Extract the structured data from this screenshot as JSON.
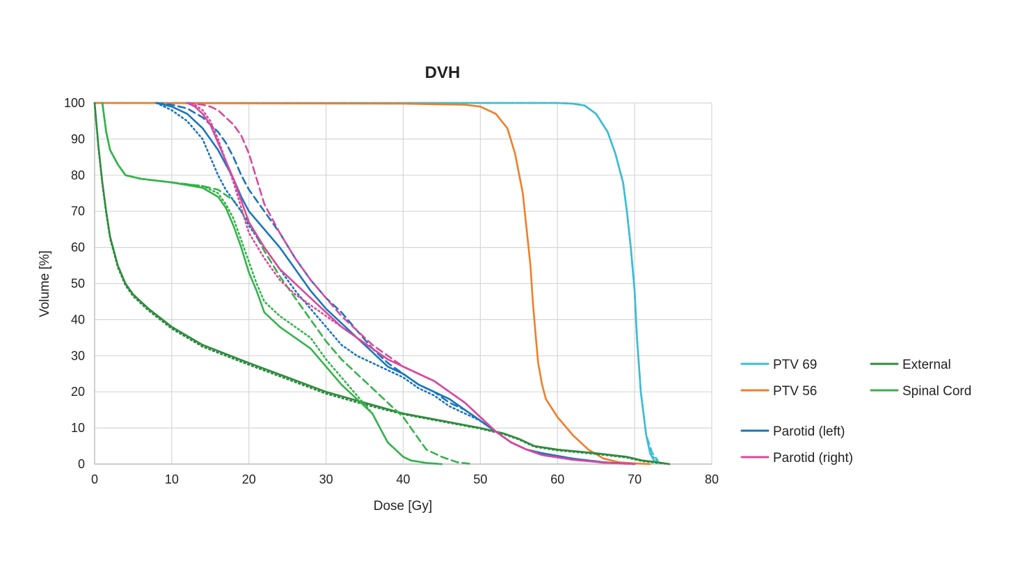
{
  "chart_data": {
    "type": "line",
    "title": "DVH",
    "xlabel": "Dose [Gy]",
    "ylabel": "Volume [%]",
    "xlim": [
      0,
      80
    ],
    "ylim": [
      0,
      100
    ],
    "xticks": [
      0,
      10,
      20,
      30,
      40,
      50,
      60,
      70,
      80
    ],
    "yticks": [
      0,
      10,
      20,
      30,
      40,
      50,
      60,
      70,
      80,
      90,
      100
    ],
    "grid": true,
    "legend_position": "right",
    "legend": [
      {
        "name": "PTV 69",
        "color": "#3dbcd4"
      },
      {
        "name": "External",
        "color": "#2e8b3e"
      },
      {
        "name": "PTV 56",
        "color": "#f07d28"
      },
      {
        "name": "Spinal Cord",
        "color": "#33b34a"
      },
      {
        "name": "Parotid (left)",
        "color": "#1a75bc"
      },
      {
        "name": "Parotid (right)",
        "color": "#d64a9e"
      }
    ],
    "series": [
      {
        "name": "PTV 69",
        "color": "#3dbcd4",
        "style": "solid",
        "x": [
          0,
          60,
          62,
          63.5,
          65,
          66.5,
          67.5,
          68.5,
          69,
          69.5,
          70,
          70.3,
          70.8,
          71.5,
          72,
          72.5
        ],
        "y": [
          100,
          100,
          99.8,
          99.3,
          97,
          92,
          86,
          78,
          70,
          60,
          48,
          35,
          20,
          8,
          3,
          1
        ]
      },
      {
        "name": "PTV 69",
        "color": "#3dbcd4",
        "style": "dashed",
        "x": [
          0,
          60,
          62,
          63.5,
          65,
          66.5,
          67.5,
          68.5,
          69,
          69.5,
          70,
          70.3,
          70.8,
          71.5,
          72.3,
          73
        ],
        "y": [
          100,
          100,
          99.8,
          99.3,
          97,
          92,
          86,
          78,
          70,
          60,
          48,
          35,
          20,
          8,
          3,
          1
        ]
      },
      {
        "name": "PTV 69",
        "color": "#3dbcd4",
        "style": "dotted",
        "x": [
          0,
          60,
          62,
          63.5,
          65,
          66.5,
          67.5,
          68.5,
          69,
          69.5,
          70,
          70.3,
          70.8,
          71.5,
          72,
          72.8
        ],
        "y": [
          100,
          100,
          99.8,
          99.3,
          97,
          92,
          86,
          78,
          70,
          60,
          48,
          35,
          20,
          8,
          3,
          1
        ]
      },
      {
        "name": "PTV 56",
        "color": "#f07d28",
        "style": "solid",
        "x": [
          0,
          40,
          48,
          50,
          52,
          53.5,
          54.5,
          55.5,
          56,
          56.5,
          56.8,
          57.2,
          57.5,
          58,
          58.5,
          60,
          62,
          64,
          66,
          68,
          70,
          72
        ],
        "y": [
          100,
          99.8,
          99.5,
          99,
          97,
          93,
          86,
          75,
          65,
          55,
          45,
          35,
          28,
          22,
          18,
          13,
          8,
          4,
          1.5,
          0.5,
          0.2,
          0
        ]
      },
      {
        "name": "External",
        "color": "#2e8b3e",
        "style": "solid",
        "x": [
          0,
          0.5,
          1,
          1.5,
          2,
          3,
          4,
          5,
          7,
          10,
          14,
          20,
          25,
          30,
          35,
          40,
          45,
          50,
          53,
          55,
          57,
          60,
          65,
          69,
          71,
          73,
          74.5
        ],
        "y": [
          100,
          88,
          78,
          70,
          63,
          55,
          50,
          47,
          43,
          38,
          33,
          28,
          24,
          20,
          17,
          14,
          12,
          10,
          8.5,
          7,
          5,
          4,
          3,
          2,
          1,
          0.5,
          0
        ]
      },
      {
        "name": "External",
        "color": "#2e8b3e",
        "style": "dotted",
        "x": [
          0,
          0.5,
          1,
          1.5,
          2,
          3,
          4,
          5,
          7,
          10,
          14,
          20,
          25,
          30,
          35,
          40,
          45,
          50,
          53,
          55,
          57,
          60,
          65,
          69,
          71,
          73,
          74.5
        ],
        "y": [
          100,
          87.5,
          77.5,
          69.5,
          62.5,
          54.5,
          49.5,
          46.5,
          42.5,
          37.5,
          32.5,
          27.5,
          23.5,
          19.5,
          16.5,
          13.8,
          11.8,
          9.8,
          8.3,
          6.8,
          4.8,
          3.8,
          2.8,
          1.8,
          0.8,
          0.3,
          0
        ]
      },
      {
        "name": "Spinal Cord",
        "color": "#33b34a",
        "style": "solid",
        "x": [
          1,
          1.5,
          2,
          3,
          4,
          6,
          10,
          14,
          16,
          17,
          18,
          19,
          20,
          21,
          22,
          24,
          26,
          28,
          30,
          32,
          34,
          36,
          37,
          38,
          39,
          40,
          41,
          43,
          45
        ],
        "y": [
          100,
          92,
          87,
          83,
          80,
          79,
          78,
          76.5,
          74,
          71,
          66,
          60,
          53,
          48,
          42,
          38,
          35,
          32,
          27,
          22,
          18,
          14,
          10,
          6,
          4,
          2,
          1,
          0.3,
          0
        ]
      },
      {
        "name": "Spinal Cord",
        "color": "#33b34a",
        "style": "dashed",
        "x": [
          1,
          1.5,
          2,
          3,
          4,
          6,
          10,
          14,
          16,
          18,
          20,
          22,
          24,
          26,
          28,
          30,
          32,
          34,
          36,
          38,
          40,
          41,
          42,
          43,
          45,
          47,
          49
        ],
        "y": [
          100,
          92,
          87,
          83,
          80,
          79,
          78,
          77,
          76,
          73,
          67,
          59,
          52,
          46,
          40,
          34,
          29,
          25,
          21,
          17,
          13,
          10,
          7,
          4,
          2,
          0.5,
          0
        ]
      },
      {
        "name": "Spinal Cord",
        "color": "#33b34a",
        "style": "dotted",
        "x": [
          1,
          1.5,
          2,
          3,
          4,
          6,
          10,
          14,
          16,
          17,
          18,
          19,
          20,
          21,
          22,
          24,
          26,
          28,
          30,
          32,
          34,
          36,
          37,
          38,
          39,
          40,
          41,
          43,
          45
        ],
        "y": [
          100,
          92,
          87,
          83,
          80,
          79,
          78,
          77,
          75,
          72,
          68,
          62,
          56,
          50,
          45,
          41,
          38,
          35,
          29,
          24,
          19,
          14,
          10,
          6,
          4,
          2,
          1,
          0.3,
          0
        ]
      },
      {
        "name": "Parotid (left)",
        "color": "#1a75bc",
        "style": "solid",
        "x": [
          8,
          10,
          12,
          14,
          16,
          17,
          18,
          19,
          20,
          22,
          24,
          26,
          28,
          30,
          32,
          34,
          36,
          38,
          40,
          42,
          44,
          46,
          48,
          50,
          52,
          54,
          56,
          58,
          62,
          66,
          70
        ],
        "y": [
          100,
          99,
          97,
          93,
          87,
          83,
          79,
          74,
          70,
          65,
          60,
          54,
          48,
          43,
          39,
          35,
          31,
          27,
          25,
          22,
          20,
          18,
          15,
          12,
          9,
          6,
          4,
          3,
          1.5,
          0.5,
          0
        ]
      },
      {
        "name": "Parotid (left)",
        "color": "#1a75bc",
        "style": "dashed",
        "x": [
          8,
          10,
          12,
          14,
          16,
          17,
          18,
          19,
          20,
          22,
          24,
          26,
          28,
          30,
          32,
          34,
          36,
          38,
          40,
          42,
          44,
          46,
          48,
          50,
          52,
          54,
          56,
          58,
          62,
          66,
          70
        ],
        "y": [
          100,
          99.5,
          98.5,
          96,
          92,
          89,
          85,
          80,
          76,
          70,
          64,
          57,
          51,
          46,
          42,
          37,
          32,
          28,
          25,
          22,
          20,
          17,
          15,
          12,
          9,
          6,
          4,
          3,
          1.5,
          0.5,
          0
        ]
      },
      {
        "name": "Parotid (left)",
        "color": "#1a75bc",
        "style": "dotted",
        "x": [
          8,
          10,
          12,
          14,
          15,
          16,
          17,
          18,
          19,
          20,
          22,
          24,
          26,
          28,
          30,
          32,
          34,
          36,
          38,
          40,
          42,
          44,
          46,
          48,
          50,
          52,
          54,
          56,
          58,
          62,
          66,
          70
        ],
        "y": [
          100,
          98,
          95,
          90,
          85,
          80,
          76,
          73,
          70,
          66,
          60,
          54,
          48,
          43,
          38,
          33,
          30,
          28,
          26,
          24,
          21,
          19,
          16,
          14,
          12,
          9,
          6,
          4,
          3,
          1.5,
          0.5,
          0
        ]
      },
      {
        "name": "Parotid (right)",
        "color": "#d64a9e",
        "style": "solid",
        "x": [
          12,
          13,
          14,
          15,
          16,
          17,
          18,
          19,
          20,
          22,
          24,
          26,
          28,
          30,
          32,
          34,
          36,
          38,
          40,
          42,
          44,
          46,
          48,
          50,
          52,
          54,
          56,
          58,
          62,
          66,
          70
        ],
        "y": [
          100,
          99,
          97,
          94,
          89,
          84,
          79,
          73,
          67,
          60,
          54,
          50,
          46,
          42,
          38,
          35,
          32,
          29,
          27,
          25,
          23,
          20,
          17,
          13,
          9,
          6,
          4,
          2.5,
          1.2,
          0.4,
          0
        ]
      },
      {
        "name": "Parotid (right)",
        "color": "#d64a9e",
        "style": "dashed",
        "x": [
          12,
          14,
          15,
          16,
          17,
          18,
          19,
          20,
          21,
          22,
          24,
          26,
          28,
          30,
          32,
          34,
          36,
          38,
          40,
          42,
          44,
          46,
          48,
          50,
          52,
          54,
          56,
          58,
          62,
          66,
          70
        ],
        "y": [
          100,
          99.5,
          99,
          98,
          96,
          94,
          91,
          86,
          79,
          72,
          64,
          57,
          51,
          46,
          41,
          37,
          33,
          30,
          27,
          25,
          23,
          20,
          17,
          13,
          9,
          6,
          4,
          2.5,
          1.2,
          0.4,
          0
        ]
      },
      {
        "name": "Parotid (right)",
        "color": "#d64a9e",
        "style": "dotted",
        "x": [
          12,
          13,
          14,
          15,
          16,
          17,
          18,
          19,
          20,
          22,
          24,
          26,
          28,
          30,
          32,
          34,
          36,
          38,
          40,
          42,
          44,
          46,
          48,
          50,
          52,
          54,
          56,
          58,
          62,
          66,
          70
        ],
        "y": [
          100,
          99.5,
          98,
          95,
          90,
          84,
          78,
          71,
          64,
          57,
          51,
          47,
          44,
          41,
          38,
          35,
          32,
          29,
          27,
          25,
          23,
          20,
          17,
          13,
          9,
          6,
          4,
          2.5,
          1.2,
          0.4,
          0
        ]
      }
    ]
  }
}
